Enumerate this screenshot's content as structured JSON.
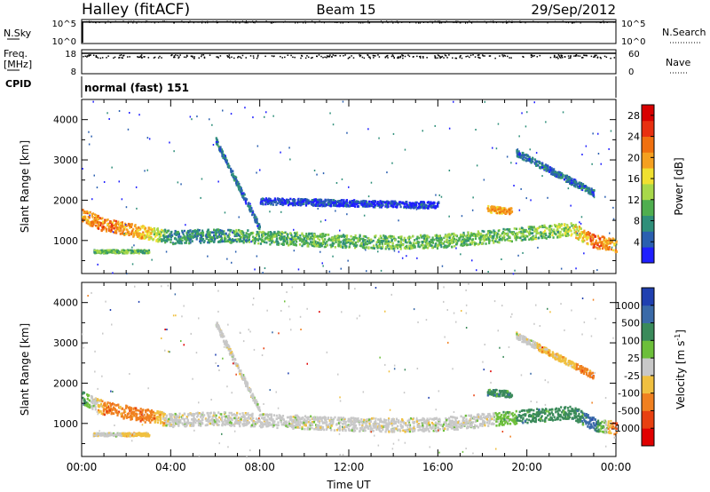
{
  "header": {
    "station": "Halley (fitACF)",
    "beam": "Beam 15",
    "date": "29/Sep/2012"
  },
  "strip_nsky": {
    "label": "N.Sky",
    "left_ticks": [
      "10^5",
      "10^0"
    ],
    "right_ticks": [
      "10^5",
      "10^0"
    ],
    "right_label": "N.Search",
    "level_fraction": 0.9
  },
  "strip_freq": {
    "label_line1": "Freq.",
    "label_line2": "[MHz]",
    "left_ticks": [
      "18",
      "8"
    ],
    "right_ticks": [
      "60",
      "0"
    ],
    "right_label": "Nave",
    "level_fraction": 0.15,
    "freq_value": 11
  },
  "cpid": {
    "label": "CPID",
    "mode_text": "normal (fast) 151"
  },
  "x_axis": {
    "label": "Time UT",
    "ticks": [
      "00:00",
      "04:00",
      "08:00",
      "12:00",
      "16:00",
      "20:00",
      "00:00"
    ],
    "range_hours": [
      0,
      24
    ]
  },
  "chart_data": [
    {
      "type": "heatmap",
      "name": "power",
      "ylabel": "Slant Range [km]",
      "ylim": [
        180,
        4500
      ],
      "yticks": [
        "1000",
        "2000",
        "3000",
        "4000"
      ],
      "colorbar": {
        "label": "Power [dB]",
        "ticks": [
          "4",
          "8",
          "12",
          "16",
          "20",
          "24",
          "28"
        ],
        "range": [
          0,
          30
        ],
        "colors": [
          "#1f1fff",
          "#2a5fb0",
          "#2f8f7a",
          "#4fae4f",
          "#a8d84a",
          "#f0e030",
          "#f5a020",
          "#f07010",
          "#e83010",
          "#d80000"
        ]
      },
      "features": [
        {
          "name": "main-echo-band",
          "t": [
            0,
            1,
            2,
            3,
            4,
            6,
            8,
            10,
            12,
            14,
            16,
            18,
            20,
            22,
            23,
            24
          ],
          "range": [
            1650,
            1400,
            1300,
            1200,
            1100,
            1150,
            1100,
            1050,
            1000,
            980,
            1000,
            1100,
            1200,
            1300,
            1000,
            900
          ],
          "intensity": [
            0.7,
            0.75,
            0.7,
            0.6,
            0.2,
            0.25,
            0.3,
            0.35,
            0.35,
            0.35,
            0.35,
            0.35,
            0.35,
            0.45,
            0.8,
            0.6
          ]
        },
        {
          "name": "lower-echo-band",
          "t": [
            0.5,
            3.0
          ],
          "range": [
            750,
            750
          ],
          "intensity": [
            0.35,
            0.35
          ]
        },
        {
          "name": "rising-streaks",
          "t": [
            6,
            8
          ],
          "range": [
            3500,
            1300
          ],
          "intensity": [
            0.15,
            0.15
          ]
        },
        {
          "name": "upper-band",
          "t": [
            8,
            16
          ],
          "range": [
            2000,
            1900
          ],
          "intensity": [
            0.05,
            0.05
          ]
        },
        {
          "name": "evening-patch",
          "t": [
            18.2,
            19.3
          ],
          "range": [
            1800,
            1750
          ],
          "intensity": [
            0.7,
            0.7
          ]
        },
        {
          "name": "late-scatter",
          "t": [
            19.5,
            23
          ],
          "range": [
            3200,
            2200
          ],
          "intensity": [
            0.15,
            0.15
          ]
        }
      ]
    },
    {
      "type": "heatmap",
      "name": "velocity",
      "ylabel": "Slant Range [km]",
      "ylim": [
        180,
        4500
      ],
      "yticks": [
        "1000",
        "2000",
        "3000",
        "4000"
      ],
      "colorbar": {
        "label": "Velocity [m s",
        "label_exp": "-1",
        "label_end": "]",
        "ticks": [
          "1000",
          "500",
          "100",
          "25",
          "-25",
          "-100",
          "-500",
          "-1000"
        ],
        "colors": [
          "#2040b0",
          "#3a6aa8",
          "#3a8a5a",
          "#6cbf3a",
          "#c8c8c8",
          "#f0c040",
          "#f08020",
          "#e84010",
          "#e00000"
        ]
      },
      "features": [
        {
          "name": "main-echo-band",
          "t": [
            0,
            1,
            2,
            3,
            4,
            6,
            8,
            10,
            12,
            14,
            16,
            18,
            20,
            22,
            23,
            24
          ],
          "range": [
            1650,
            1400,
            1300,
            1200,
            1100,
            1150,
            1100,
            1050,
            1000,
            980,
            1000,
            1100,
            1200,
            1300,
            1000,
            900
          ],
          "velocity_class": [
            2,
            6,
            6,
            6,
            4,
            4,
            4,
            4,
            4,
            4,
            4,
            4,
            2,
            2,
            1,
            7
          ]
        },
        {
          "name": "lower-echo-band",
          "t": [
            0.5,
            3.0
          ],
          "range": [
            750,
            750
          ],
          "velocity_class": [
            4,
            5
          ]
        },
        {
          "name": "rising-streaks",
          "t": [
            6,
            8
          ],
          "range": [
            3500,
            1300
          ],
          "velocity_class": [
            4,
            4
          ]
        },
        {
          "name": "evening-patch",
          "t": [
            18.2,
            19.3
          ],
          "range": [
            1800,
            1750
          ],
          "velocity_class": [
            2,
            2
          ]
        },
        {
          "name": "late-scatter",
          "t": [
            19.5,
            23
          ],
          "range": [
            3200,
            2200
          ],
          "velocity_class": [
            4,
            6
          ]
        }
      ]
    }
  ]
}
